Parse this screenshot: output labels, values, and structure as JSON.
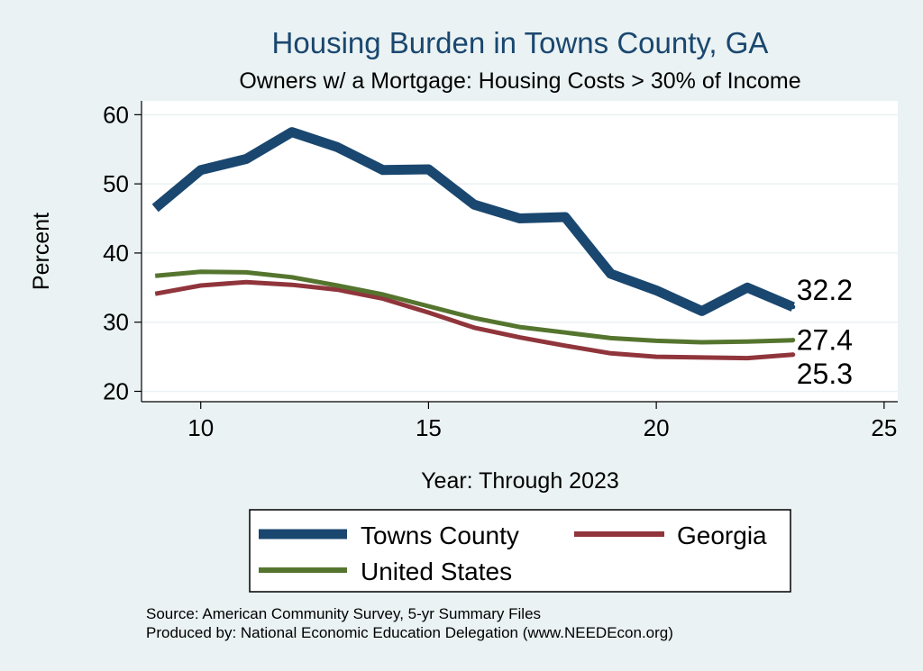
{
  "chart_data": {
    "type": "line",
    "title": "Housing Burden in Towns County, GA",
    "subtitle": "Owners w/ a Mortgage: Housing Costs > 30% of Income",
    "xlabel": "Year: Through 2023",
    "ylabel": "Percent",
    "xlim": [
      8.7,
      25.3
    ],
    "ylim": [
      18.5,
      62
    ],
    "xticks": [
      10,
      15,
      20,
      25
    ],
    "yticks": [
      20,
      30,
      40,
      50,
      60
    ],
    "grid": true,
    "legend_position": "bottom",
    "x": [
      9,
      10,
      11,
      12,
      13,
      14,
      15,
      16,
      17,
      18,
      19,
      20,
      21,
      22,
      23
    ],
    "series": [
      {
        "name": "Towns County",
        "color": "#1a476f",
        "end_label": "32.2",
        "values": [
          46.5,
          52.0,
          53.6,
          57.5,
          55.3,
          52.0,
          52.1,
          47.0,
          45.0,
          45.2,
          37.0,
          34.6,
          31.6,
          35.0,
          32.2
        ]
      },
      {
        "name": "Georgia",
        "color": "#90353b",
        "end_label": "25.3",
        "values": [
          34.1,
          35.3,
          35.8,
          35.4,
          34.7,
          33.4,
          31.4,
          29.2,
          27.8,
          26.6,
          25.5,
          25.0,
          24.9,
          24.8,
          25.3
        ]
      },
      {
        "name": "United States",
        "color": "#55752f",
        "end_label": "27.4",
        "values": [
          36.7,
          37.3,
          37.2,
          36.5,
          35.3,
          34.0,
          32.3,
          30.6,
          29.3,
          28.5,
          27.7,
          27.3,
          27.1,
          27.2,
          27.4
        ]
      }
    ]
  },
  "notes": {
    "source": "Source: American Community Survey, 5-yr Summary Files",
    "produced_by": "Produced by: National Economic Education Delegation (www.NEEDEcon.org)"
  }
}
